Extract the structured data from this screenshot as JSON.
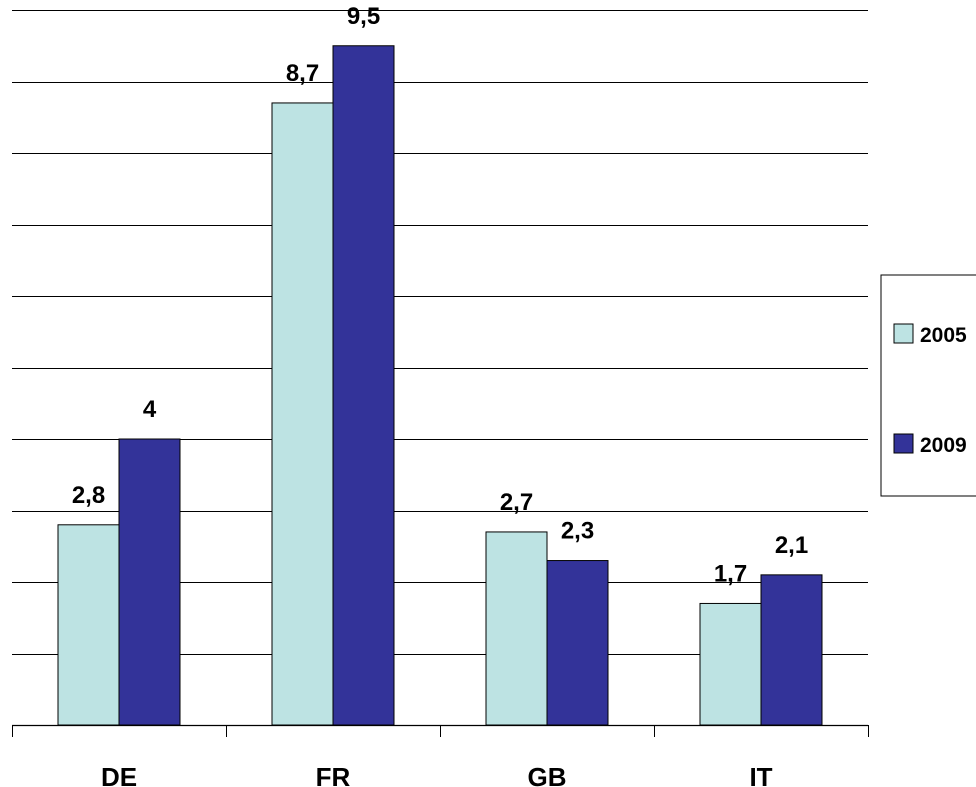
{
  "chart_data": {
    "type": "bar",
    "categories": [
      "DE",
      "FR",
      "GB",
      "IT"
    ],
    "series": [
      {
        "name": "2005",
        "values": [
          2.8,
          8.7,
          2.7,
          1.7
        ],
        "color": "#bde3e3",
        "labels": [
          "2,8",
          "8,7",
          "2,7",
          "1,7"
        ]
      },
      {
        "name": "2009",
        "values": [
          4,
          9.5,
          2.3,
          2.1
        ],
        "color": "#333399",
        "labels": [
          "4",
          "9,5",
          "2,3",
          "2,1"
        ]
      }
    ],
    "ylim": [
      0,
      10
    ],
    "grid": true,
    "legend_position": "right",
    "title": "",
    "xlabel": "",
    "ylabel": ""
  }
}
